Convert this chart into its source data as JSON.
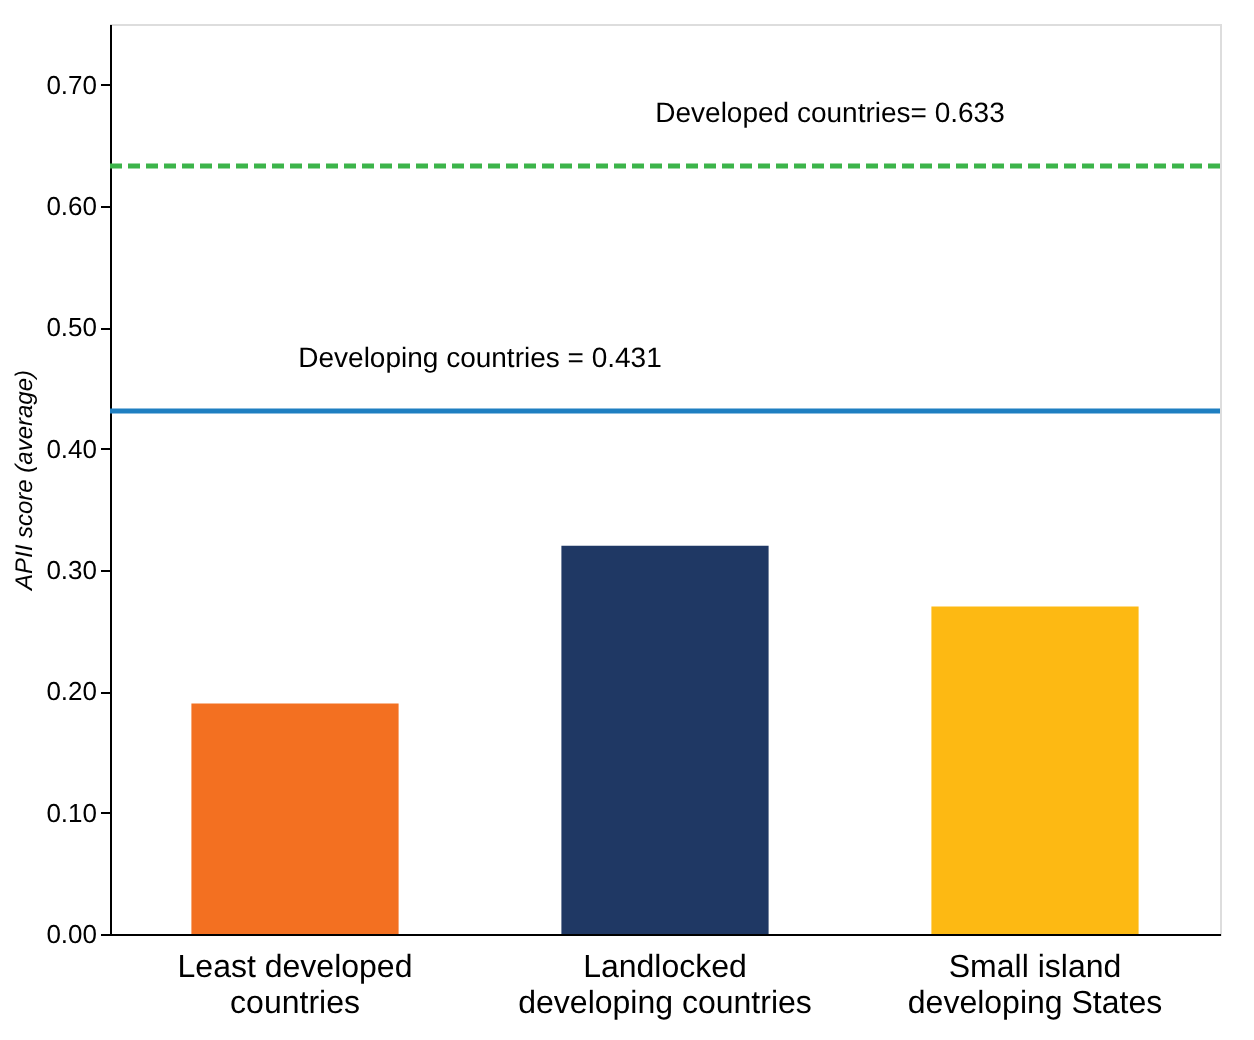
{
  "chart_data": {
    "type": "bar",
    "ylabel": "APII score (average)",
    "categories": [
      "Least developed countries",
      "Landlocked developing countries",
      "Small island developing States"
    ],
    "values": [
      0.19,
      0.32,
      0.27
    ],
    "colors": [
      "#f37021",
      "#1f3864",
      "#fdb913"
    ],
    "ylim": [
      0,
      0.75
    ],
    "yticks": [
      {
        "value": 0,
        "label": "0.00"
      },
      {
        "value": 0.1,
        "label": "0.10"
      },
      {
        "value": 0.2,
        "label": "0.20"
      },
      {
        "value": 0.3,
        "label": "0.30"
      },
      {
        "value": 0.4,
        "label": "0.40"
      },
      {
        "value": 0.5,
        "label": "0.50"
      },
      {
        "value": 0.6,
        "label": "0.60"
      },
      {
        "value": 0.7,
        "label": "0.70"
      }
    ],
    "ref_lines": [
      {
        "axis": "y",
        "value": 0.431,
        "label": "Developing countries = 0.431",
        "color": "#1f7fc1",
        "line_style": "solid"
      },
      {
        "axis": "y",
        "value": 0.633,
        "label": "Developed countries= 0.633",
        "color": "#3cb44a",
        "line_style": "dashed"
      }
    ],
    "grid": false
  }
}
